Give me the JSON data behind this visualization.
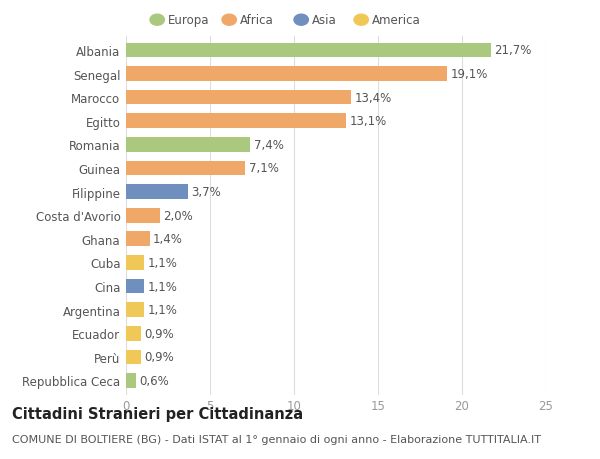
{
  "countries": [
    "Albania",
    "Senegal",
    "Marocco",
    "Egitto",
    "Romania",
    "Guinea",
    "Filippine",
    "Costa d'Avorio",
    "Ghana",
    "Cuba",
    "Cina",
    "Argentina",
    "Ecuador",
    "Perù",
    "Repubblica Ceca"
  ],
  "values": [
    21.7,
    19.1,
    13.4,
    13.1,
    7.4,
    7.1,
    3.7,
    2.0,
    1.4,
    1.1,
    1.1,
    1.1,
    0.9,
    0.9,
    0.6
  ],
  "labels": [
    "21,7%",
    "19,1%",
    "13,4%",
    "13,1%",
    "7,4%",
    "7,1%",
    "3,7%",
    "2,0%",
    "1,4%",
    "1,1%",
    "1,1%",
    "1,1%",
    "0,9%",
    "0,9%",
    "0,6%"
  ],
  "continents": [
    "Europa",
    "Africa",
    "Africa",
    "Africa",
    "Europa",
    "Africa",
    "Asia",
    "Africa",
    "Africa",
    "America",
    "Asia",
    "America",
    "America",
    "America",
    "Europa"
  ],
  "colors": {
    "Europa": "#aac97e",
    "Africa": "#f0a868",
    "Asia": "#6f8fbf",
    "America": "#f0c858"
  },
  "legend_order": [
    "Europa",
    "Africa",
    "Asia",
    "America"
  ],
  "xlim": [
    0,
    25
  ],
  "xticks": [
    0,
    5,
    10,
    15,
    20,
    25
  ],
  "title": "Cittadini Stranieri per Cittadinanza",
  "subtitle": "COMUNE DI BOLTIERE (BG) - Dati ISTAT al 1° gennaio di ogni anno - Elaborazione TUTTITALIA.IT",
  "bg_color": "#ffffff",
  "grid_color": "#dddddd",
  "bar_height": 0.62,
  "label_fontsize": 8.5,
  "tick_fontsize": 8.5,
  "title_fontsize": 10.5,
  "subtitle_fontsize": 8.0
}
